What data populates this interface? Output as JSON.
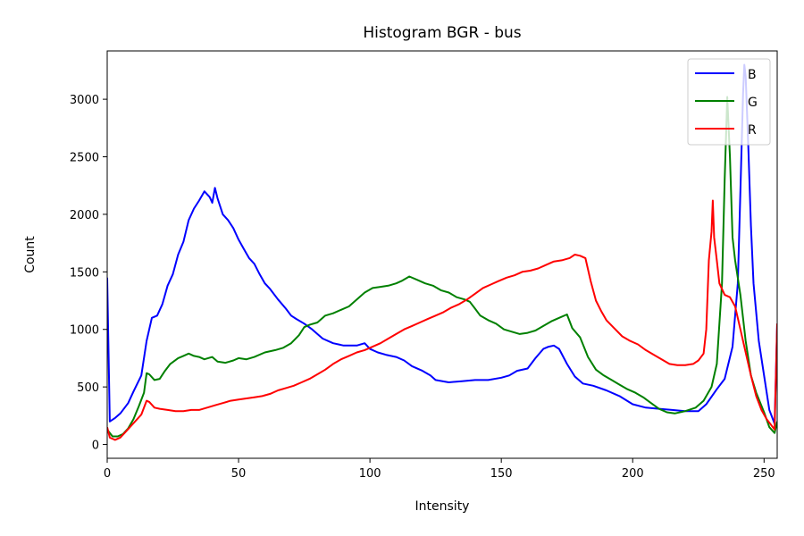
{
  "chart_data": {
    "type": "line",
    "title": "Histogram BGR - bus",
    "xlabel": "Intensity",
    "ylabel": "Count",
    "xlim": [
      0,
      255
    ],
    "ylim": [
      -120,
      3420
    ],
    "xticks": [
      0,
      50,
      100,
      150,
      200,
      250
    ],
    "yticks": [
      0,
      500,
      1000,
      1500,
      2000,
      2500,
      3000
    ],
    "grid": false,
    "legend_position": "top-right",
    "series": [
      {
        "name": "B",
        "color": "#0000ff",
        "points": [
          [
            0,
            1450
          ],
          [
            1,
            200
          ],
          [
            3,
            230
          ],
          [
            5,
            270
          ],
          [
            8,
            360
          ],
          [
            10,
            460
          ],
          [
            13,
            600
          ],
          [
            15,
            900
          ],
          [
            17,
            1100
          ],
          [
            19,
            1120
          ],
          [
            21,
            1220
          ],
          [
            23,
            1380
          ],
          [
            25,
            1480
          ],
          [
            27,
            1650
          ],
          [
            29,
            1760
          ],
          [
            31,
            1950
          ],
          [
            33,
            2050
          ],
          [
            35,
            2120
          ],
          [
            37,
            2200
          ],
          [
            39,
            2150
          ],
          [
            40,
            2100
          ],
          [
            41,
            2230
          ],
          [
            42,
            2140
          ],
          [
            44,
            2000
          ],
          [
            46,
            1950
          ],
          [
            48,
            1880
          ],
          [
            50,
            1780
          ],
          [
            52,
            1700
          ],
          [
            54,
            1620
          ],
          [
            56,
            1570
          ],
          [
            58,
            1480
          ],
          [
            60,
            1400
          ],
          [
            62,
            1350
          ],
          [
            65,
            1260
          ],
          [
            68,
            1180
          ],
          [
            70,
            1120
          ],
          [
            72,
            1090
          ],
          [
            75,
            1050
          ],
          [
            78,
            1000
          ],
          [
            82,
            920
          ],
          [
            86,
            880
          ],
          [
            90,
            860
          ],
          [
            95,
            860
          ],
          [
            98,
            880
          ],
          [
            100,
            830
          ],
          [
            103,
            800
          ],
          [
            106,
            780
          ],
          [
            110,
            760
          ],
          [
            113,
            730
          ],
          [
            116,
            680
          ],
          [
            120,
            640
          ],
          [
            123,
            600
          ],
          [
            125,
            560
          ],
          [
            130,
            540
          ],
          [
            135,
            550
          ],
          [
            140,
            560
          ],
          [
            145,
            560
          ],
          [
            150,
            580
          ],
          [
            153,
            600
          ],
          [
            156,
            640
          ],
          [
            160,
            660
          ],
          [
            163,
            750
          ],
          [
            166,
            830
          ],
          [
            168,
            850
          ],
          [
            170,
            860
          ],
          [
            172,
            830
          ],
          [
            175,
            700
          ],
          [
            178,
            590
          ],
          [
            181,
            530
          ],
          [
            185,
            510
          ],
          [
            190,
            470
          ],
          [
            195,
            420
          ],
          [
            200,
            350
          ],
          [
            205,
            320
          ],
          [
            210,
            310
          ],
          [
            215,
            300
          ],
          [
            220,
            290
          ],
          [
            225,
            290
          ],
          [
            228,
            350
          ],
          [
            232,
            480
          ],
          [
            235,
            570
          ],
          [
            238,
            850
          ],
          [
            240,
            1400
          ],
          [
            241,
            2200
          ],
          [
            242,
            3050
          ],
          [
            242.5,
            3300
          ],
          [
            243,
            3200
          ],
          [
            244,
            2600
          ],
          [
            245,
            1900
          ],
          [
            246,
            1400
          ],
          [
            248,
            900
          ],
          [
            250,
            600
          ],
          [
            252,
            300
          ],
          [
            254,
            180
          ],
          [
            255,
            1050
          ]
        ]
      },
      {
        "name": "G",
        "color": "#008000",
        "points": [
          [
            0,
            130
          ],
          [
            2,
            70
          ],
          [
            4,
            70
          ],
          [
            6,
            90
          ],
          [
            8,
            140
          ],
          [
            10,
            220
          ],
          [
            12,
            330
          ],
          [
            14,
            450
          ],
          [
            15,
            620
          ],
          [
            16,
            610
          ],
          [
            18,
            560
          ],
          [
            20,
            570
          ],
          [
            22,
            640
          ],
          [
            24,
            700
          ],
          [
            27,
            750
          ],
          [
            29,
            770
          ],
          [
            31,
            790
          ],
          [
            33,
            770
          ],
          [
            35,
            760
          ],
          [
            37,
            740
          ],
          [
            40,
            760
          ],
          [
            42,
            720
          ],
          [
            45,
            710
          ],
          [
            48,
            730
          ],
          [
            50,
            750
          ],
          [
            53,
            740
          ],
          [
            56,
            760
          ],
          [
            60,
            800
          ],
          [
            64,
            820
          ],
          [
            67,
            840
          ],
          [
            70,
            880
          ],
          [
            73,
            950
          ],
          [
            75,
            1020
          ],
          [
            77,
            1040
          ],
          [
            80,
            1060
          ],
          [
            83,
            1120
          ],
          [
            86,
            1140
          ],
          [
            89,
            1170
          ],
          [
            92,
            1200
          ],
          [
            95,
            1260
          ],
          [
            98,
            1320
          ],
          [
            101,
            1360
          ],
          [
            104,
            1370
          ],
          [
            107,
            1380
          ],
          [
            110,
            1400
          ],
          [
            112,
            1420
          ],
          [
            115,
            1460
          ],
          [
            118,
            1430
          ],
          [
            121,
            1400
          ],
          [
            124,
            1380
          ],
          [
            127,
            1340
          ],
          [
            130,
            1320
          ],
          [
            133,
            1280
          ],
          [
            136,
            1260
          ],
          [
            138,
            1240
          ],
          [
            140,
            1180
          ],
          [
            142,
            1120
          ],
          [
            145,
            1080
          ],
          [
            148,
            1050
          ],
          [
            151,
            1000
          ],
          [
            154,
            980
          ],
          [
            157,
            960
          ],
          [
            160,
            970
          ],
          [
            163,
            990
          ],
          [
            166,
            1030
          ],
          [
            169,
            1070
          ],
          [
            172,
            1100
          ],
          [
            175,
            1130
          ],
          [
            177,
            1010
          ],
          [
            180,
            930
          ],
          [
            183,
            760
          ],
          [
            186,
            650
          ],
          [
            189,
            600
          ],
          [
            192,
            560
          ],
          [
            195,
            520
          ],
          [
            198,
            480
          ],
          [
            201,
            450
          ],
          [
            204,
            410
          ],
          [
            207,
            360
          ],
          [
            210,
            310
          ],
          [
            213,
            280
          ],
          [
            216,
            270
          ],
          [
            220,
            290
          ],
          [
            224,
            320
          ],
          [
            227,
            380
          ],
          [
            230,
            500
          ],
          [
            232,
            700
          ],
          [
            234,
            1400
          ],
          [
            235,
            2300
          ],
          [
            236,
            3020
          ],
          [
            237,
            2500
          ],
          [
            238,
            1800
          ],
          [
            239,
            1600
          ],
          [
            241,
            1300
          ],
          [
            243,
            900
          ],
          [
            245,
            600
          ],
          [
            247,
            450
          ],
          [
            250,
            280
          ],
          [
            252,
            150
          ],
          [
            254,
            100
          ],
          [
            255,
            200
          ]
        ]
      },
      {
        "name": "R",
        "color": "#ff0000",
        "points": [
          [
            0,
            150
          ],
          [
            1,
            60
          ],
          [
            3,
            40
          ],
          [
            5,
            60
          ],
          [
            7,
            110
          ],
          [
            9,
            160
          ],
          [
            11,
            210
          ],
          [
            13,
            260
          ],
          [
            15,
            380
          ],
          [
            16,
            370
          ],
          [
            18,
            320
          ],
          [
            20,
            310
          ],
          [
            23,
            300
          ],
          [
            26,
            290
          ],
          [
            29,
            290
          ],
          [
            32,
            300
          ],
          [
            35,
            300
          ],
          [
            38,
            320
          ],
          [
            41,
            340
          ],
          [
            44,
            360
          ],
          [
            47,
            380
          ],
          [
            50,
            390
          ],
          [
            53,
            400
          ],
          [
            56,
            410
          ],
          [
            59,
            420
          ],
          [
            62,
            440
          ],
          [
            65,
            470
          ],
          [
            68,
            490
          ],
          [
            71,
            510
          ],
          [
            74,
            540
          ],
          [
            77,
            570
          ],
          [
            80,
            610
          ],
          [
            83,
            650
          ],
          [
            86,
            700
          ],
          [
            89,
            740
          ],
          [
            92,
            770
          ],
          [
            95,
            800
          ],
          [
            98,
            820
          ],
          [
            101,
            850
          ],
          [
            104,
            880
          ],
          [
            107,
            920
          ],
          [
            110,
            960
          ],
          [
            113,
            1000
          ],
          [
            116,
            1030
          ],
          [
            119,
            1060
          ],
          [
            122,
            1090
          ],
          [
            125,
            1120
          ],
          [
            128,
            1150
          ],
          [
            131,
            1190
          ],
          [
            134,
            1220
          ],
          [
            137,
            1260
          ],
          [
            140,
            1310
          ],
          [
            143,
            1360
          ],
          [
            146,
            1390
          ],
          [
            149,
            1420
          ],
          [
            152,
            1450
          ],
          [
            155,
            1470
          ],
          [
            158,
            1500
          ],
          [
            161,
            1510
          ],
          [
            164,
            1530
          ],
          [
            167,
            1560
          ],
          [
            170,
            1590
          ],
          [
            173,
            1600
          ],
          [
            176,
            1620
          ],
          [
            178,
            1650
          ],
          [
            180,
            1640
          ],
          [
            182,
            1620
          ],
          [
            184,
            1420
          ],
          [
            186,
            1250
          ],
          [
            188,
            1160
          ],
          [
            190,
            1080
          ],
          [
            193,
            1010
          ],
          [
            196,
            940
          ],
          [
            199,
            900
          ],
          [
            202,
            870
          ],
          [
            205,
            820
          ],
          [
            208,
            780
          ],
          [
            211,
            740
          ],
          [
            214,
            700
          ],
          [
            217,
            690
          ],
          [
            220,
            690
          ],
          [
            223,
            700
          ],
          [
            225,
            730
          ],
          [
            227,
            790
          ],
          [
            228,
            1000
          ],
          [
            229,
            1600
          ],
          [
            230,
            1850
          ],
          [
            230.5,
            2120
          ],
          [
            231,
            1800
          ],
          [
            232,
            1600
          ],
          [
            233,
            1400
          ],
          [
            235,
            1300
          ],
          [
            237,
            1280
          ],
          [
            239,
            1200
          ],
          [
            241,
            1000
          ],
          [
            243,
            800
          ],
          [
            245,
            600
          ],
          [
            247,
            420
          ],
          [
            249,
            300
          ],
          [
            251,
            220
          ],
          [
            253,
            160
          ],
          [
            254,
            130
          ],
          [
            255,
            1050
          ]
        ]
      }
    ]
  }
}
